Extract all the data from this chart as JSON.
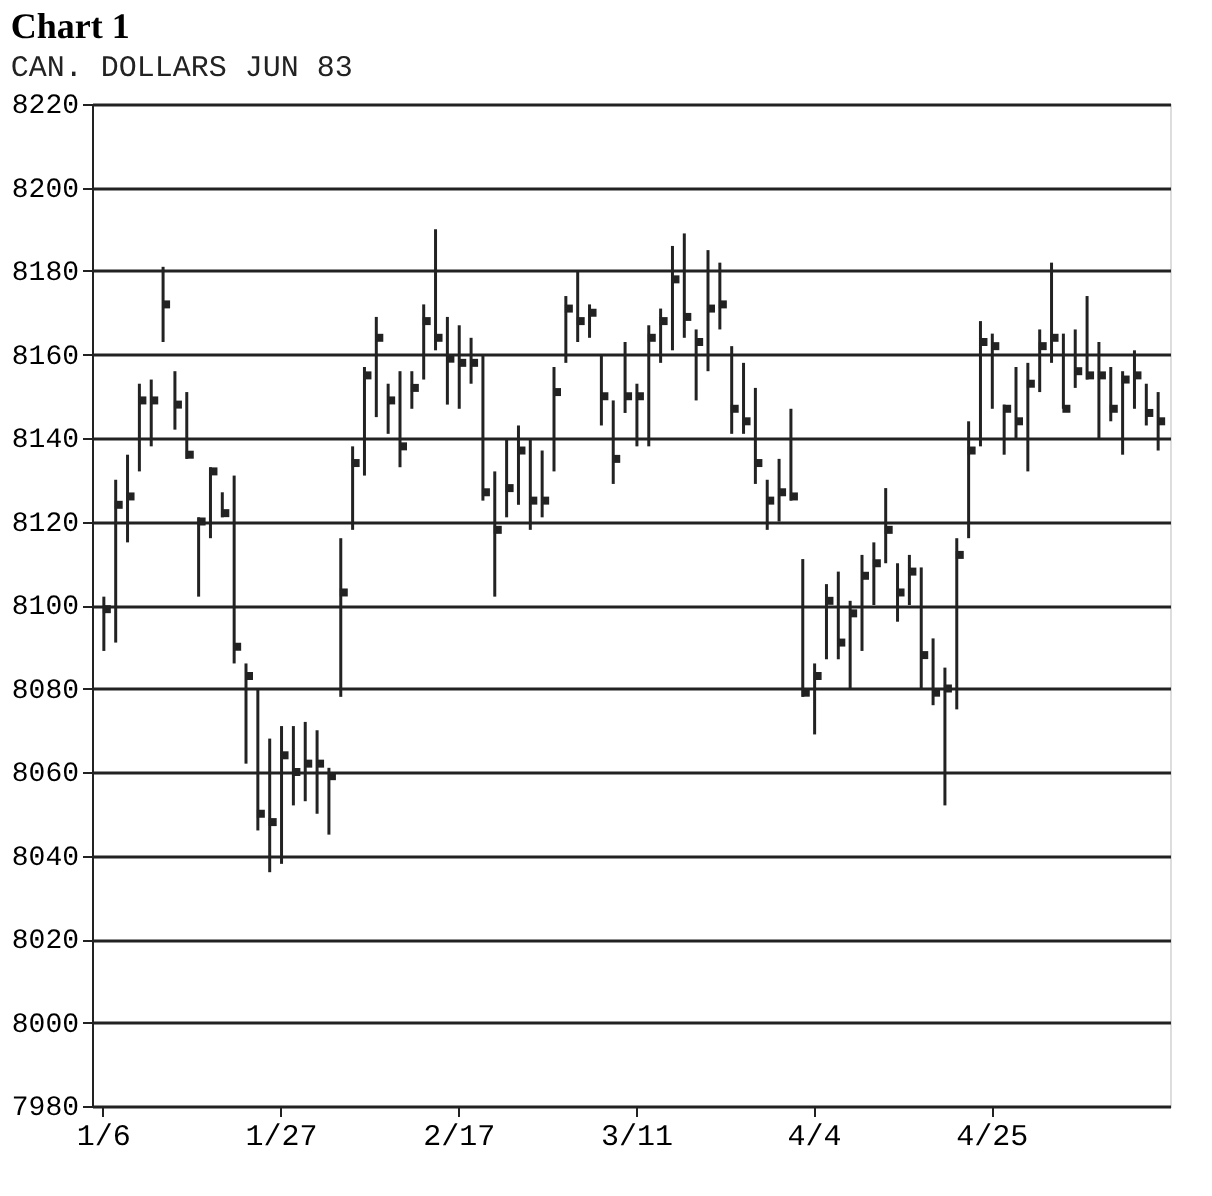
{
  "chart_data": {
    "type": "bar",
    "title": "Chart 1",
    "subtitle": "CAN. DOLLARS JUN 83",
    "categories": [
      "1/6",
      null,
      null,
      null,
      null,
      null,
      null,
      null,
      null,
      null,
      null,
      null,
      null,
      null,
      null,
      "1/27",
      null,
      null,
      null,
      null,
      null,
      null,
      null,
      null,
      null,
      null,
      null,
      null,
      null,
      null,
      "2/17",
      null,
      null,
      null,
      null,
      null,
      null,
      null,
      null,
      null,
      null,
      null,
      null,
      null,
      null,
      "3/11",
      null,
      null,
      null,
      null,
      null,
      null,
      null,
      null,
      null,
      null,
      null,
      null,
      null,
      null,
      "4/4",
      null,
      null,
      null,
      null,
      null,
      null,
      null,
      null,
      null,
      null,
      null,
      null,
      null,
      null,
      "4/25",
      null,
      null,
      null,
      null,
      null,
      null,
      null,
      null,
      null,
      null,
      null,
      null,
      null,
      null
    ],
    "series": [
      {
        "color": "#222222",
        "base": [
          8089,
          8091,
          8115,
          8132,
          8138,
          8163,
          8142,
          8135,
          8102,
          8116,
          8121,
          8086,
          8062,
          8046,
          8036,
          8038,
          8052,
          8053,
          8050,
          8045,
          8078,
          8118,
          8131,
          8145,
          8141,
          8133,
          8147,
          8154,
          8161,
          8148,
          8147,
          8153,
          8125,
          8102,
          8121,
          8124,
          8118,
          8121,
          8132,
          8158,
          8163,
          8164,
          8143,
          8129,
          8146,
          8138,
          8138,
          8158,
          8161,
          8164,
          8149,
          8156,
          8166,
          8141,
          8141,
          8129,
          8118,
          8120,
          8125,
          8078,
          8069,
          8087,
          8087,
          8080,
          8089,
          8100,
          8110,
          8096,
          8100,
          8080,
          8076,
          8052,
          8075,
          8116,
          8138,
          8147,
          8136,
          8140,
          8132,
          8151,
          8158,
          8147,
          8152,
          8154,
          8140,
          8144,
          8136,
          8147,
          8143,
          8137
        ],
        "values": [
          13,
          39,
          21,
          21,
          16,
          18,
          14,
          16,
          19,
          17,
          6,
          45,
          24,
          34,
          32,
          33,
          19,
          19,
          20,
          16,
          38,
          20,
          26,
          24,
          12,
          23,
          9,
          18,
          29,
          21,
          20,
          11,
          35,
          30,
          19,
          19,
          22,
          16,
          25,
          16,
          17,
          8,
          17,
          20,
          17,
          15,
          29,
          13,
          25,
          25,
          17,
          29,
          16,
          21,
          17,
          23,
          12,
          15,
          22,
          33,
          17,
          18,
          21,
          21,
          23,
          15,
          18,
          14,
          12,
          29,
          16,
          33,
          41,
          28,
          30,
          18,
          12,
          17,
          26,
          15,
          24,
          18,
          14,
          20,
          23,
          13,
          20,
          14,
          10,
          14
        ]
      },
      {
        "type": "scatter",
        "color": "#222222",
        "marker": "square",
        "values": [
          8099,
          8124,
          8126,
          8149,
          8149,
          8172,
          8148,
          8136,
          8120,
          8132,
          8122,
          8090,
          8083,
          8050,
          8048,
          8064,
          8060,
          8062,
          8062,
          8059,
          8103,
          8134,
          8155,
          8164,
          8149,
          8138,
          8152,
          8168,
          8164,
          8159,
          8158,
          8158,
          8127,
          8118,
          8128,
          8137,
          8125,
          8125,
          8151,
          8171,
          8168,
          8170,
          8150,
          8135,
          8150,
          8150,
          8164,
          8168,
          8178,
          8169,
          8163,
          8171,
          8172,
          8147,
          8144,
          8134,
          8125,
          8127,
          8126,
          8079,
          8083,
          8101,
          8091,
          8098,
          8107,
          8110,
          8118,
          8103,
          8108,
          8088,
          8079,
          8080,
          8112,
          8137,
          8163,
          8162,
          8147,
          8144,
          8153,
          8162,
          8164,
          8147,
          8156,
          8155,
          8155,
          8147,
          8154,
          8155,
          8146,
          8144
        ]
      }
    ],
    "ylim": [
      7980,
      8220
    ],
    "yticks": [
      7980,
      8000,
      8020,
      8040,
      8060,
      8080,
      8100,
      8120,
      8140,
      8160,
      8180,
      8200,
      8220
    ],
    "grid": "y"
  }
}
